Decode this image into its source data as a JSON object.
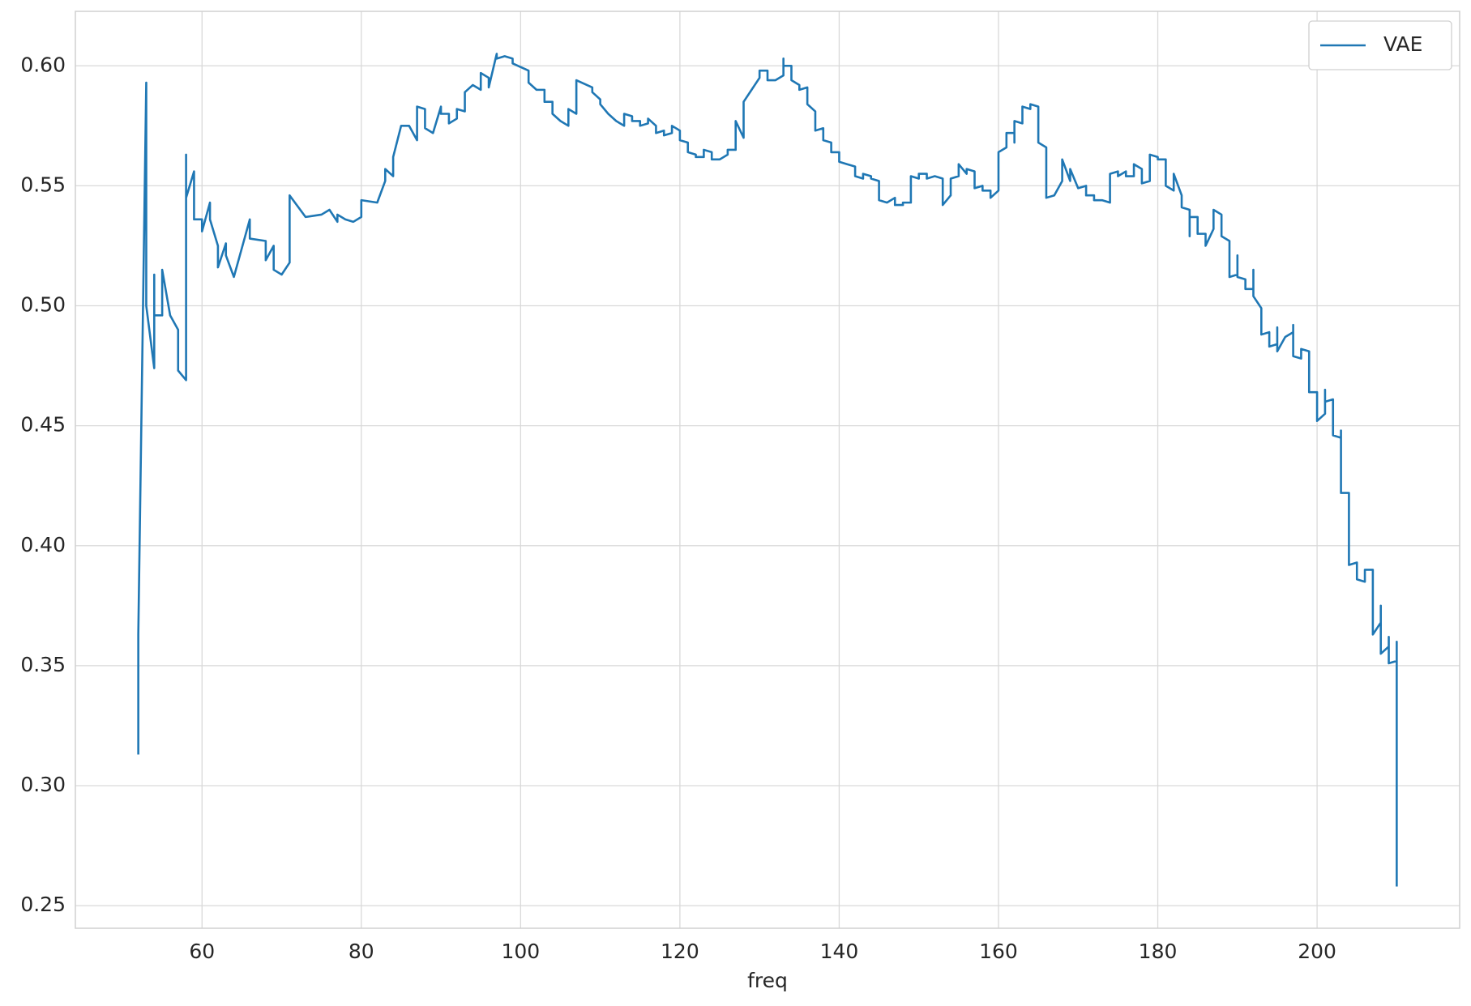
{
  "chart_data": {
    "type": "line",
    "xlabel": "freq",
    "x": [
      52,
      52,
      53,
      53,
      54,
      54,
      54,
      55,
      55,
      56,
      57,
      57,
      58,
      58,
      58,
      59,
      59,
      60,
      60,
      61,
      61,
      62,
      62,
      63,
      63,
      64,
      66,
      66,
      68,
      68,
      69,
      69,
      70,
      71,
      71,
      73,
      75,
      76,
      77,
      77,
      78,
      79,
      80,
      80,
      82,
      83,
      83,
      84,
      84,
      85,
      86,
      87,
      87,
      88,
      88,
      89,
      90,
      90,
      91,
      91,
      92,
      92,
      93,
      93,
      94,
      95,
      95,
      96,
      96,
      97,
      97,
      98,
      99,
      99,
      101,
      101,
      102,
      103,
      103,
      104,
      104,
      105,
      106,
      106,
      107,
      107,
      109,
      109,
      110,
      110,
      111,
      112,
      113,
      113,
      114,
      114,
      115,
      115,
      116,
      116,
      117,
      117,
      118,
      118,
      119,
      119,
      120,
      120,
      121,
      121,
      122,
      122,
      123,
      123,
      124,
      124,
      125,
      126,
      126,
      127,
      127,
      128,
      128,
      129,
      130,
      130,
      131,
      131,
      132,
      133,
      133,
      133,
      134,
      134,
      135,
      135,
      136,
      136,
      137,
      137,
      138,
      138,
      139,
      139,
      140,
      140,
      141,
      142,
      142,
      143,
      143,
      144,
      144,
      145,
      145,
      146,
      147,
      147,
      148,
      148,
      149,
      149,
      150,
      150,
      151,
      151,
      152,
      153,
      153,
      154,
      154,
      155,
      155,
      156,
      156,
      157,
      157,
      158,
      158,
      159,
      159,
      160,
      160,
      161,
      161,
      162,
      162,
      162,
      163,
      163,
      164,
      164,
      165,
      165,
      166,
      166,
      167,
      168,
      168,
      169,
      169,
      170,
      171,
      171,
      172,
      172,
      173,
      174,
      174,
      175,
      175,
      176,
      176,
      177,
      177,
      178,
      178,
      179,
      179,
      180,
      180,
      181,
      181,
      182,
      182,
      183,
      183,
      184,
      184,
      184,
      185,
      185,
      186,
      186,
      187,
      187,
      188,
      188,
      189,
      189,
      190,
      190,
      190,
      191,
      191,
      192,
      192,
      192,
      193,
      193,
      194,
      194,
      195,
      195,
      195,
      196,
      197,
      197,
      197,
      198,
      198,
      199,
      199,
      200,
      200,
      201,
      201,
      201,
      202,
      202,
      203,
      203,
      203,
      204,
      204,
      205,
      205,
      206,
      206,
      207,
      207,
      208,
      208,
      208,
      209,
      209,
      209,
      210,
      210,
      210
    ],
    "series": [
      {
        "name": "VAE",
        "color": "#1f77b4",
        "values": [
          0.313,
          0.363,
          0.593,
          0.5,
          0.474,
          0.513,
          0.496,
          0.496,
          0.515,
          0.496,
          0.49,
          0.473,
          0.469,
          0.563,
          0.545,
          0.556,
          0.536,
          0.536,
          0.531,
          0.543,
          0.536,
          0.525,
          0.516,
          0.526,
          0.521,
          0.512,
          0.536,
          0.528,
          0.527,
          0.519,
          0.525,
          0.515,
          0.513,
          0.518,
          0.546,
          0.537,
          0.538,
          0.54,
          0.535,
          0.538,
          0.536,
          0.535,
          0.537,
          0.544,
          0.543,
          0.552,
          0.557,
          0.554,
          0.562,
          0.575,
          0.575,
          0.569,
          0.583,
          0.582,
          0.574,
          0.572,
          0.583,
          0.58,
          0.58,
          0.576,
          0.578,
          0.582,
          0.581,
          0.589,
          0.592,
          0.59,
          0.597,
          0.595,
          0.591,
          0.605,
          0.603,
          0.604,
          0.603,
          0.601,
          0.598,
          0.593,
          0.59,
          0.59,
          0.585,
          0.585,
          0.58,
          0.577,
          0.575,
          0.582,
          0.58,
          0.594,
          0.591,
          0.589,
          0.586,
          0.584,
          0.58,
          0.577,
          0.575,
          0.58,
          0.579,
          0.577,
          0.577,
          0.575,
          0.576,
          0.578,
          0.575,
          0.572,
          0.573,
          0.571,
          0.572,
          0.575,
          0.573,
          0.569,
          0.568,
          0.564,
          0.563,
          0.562,
          0.562,
          0.565,
          0.564,
          0.561,
          0.561,
          0.563,
          0.565,
          0.565,
          0.577,
          0.57,
          0.585,
          0.59,
          0.595,
          0.598,
          0.598,
          0.594,
          0.594,
          0.596,
          0.603,
          0.6,
          0.6,
          0.594,
          0.592,
          0.59,
          0.591,
          0.584,
          0.581,
          0.573,
          0.574,
          0.569,
          0.568,
          0.564,
          0.564,
          0.56,
          0.559,
          0.558,
          0.554,
          0.553,
          0.555,
          0.554,
          0.553,
          0.552,
          0.544,
          0.543,
          0.545,
          0.542,
          0.542,
          0.543,
          0.543,
          0.554,
          0.553,
          0.555,
          0.555,
          0.553,
          0.554,
          0.553,
          0.542,
          0.546,
          0.553,
          0.554,
          0.559,
          0.555,
          0.557,
          0.556,
          0.549,
          0.55,
          0.548,
          0.548,
          0.545,
          0.548,
          0.564,
          0.566,
          0.572,
          0.572,
          0.568,
          0.577,
          0.576,
          0.583,
          0.582,
          0.584,
          0.583,
          0.568,
          0.566,
          0.545,
          0.546,
          0.552,
          0.561,
          0.552,
          0.557,
          0.549,
          0.55,
          0.546,
          0.546,
          0.544,
          0.544,
          0.543,
          0.555,
          0.556,
          0.554,
          0.556,
          0.554,
          0.554,
          0.559,
          0.557,
          0.551,
          0.552,
          0.563,
          0.562,
          0.561,
          0.561,
          0.55,
          0.548,
          0.555,
          0.546,
          0.541,
          0.54,
          0.529,
          0.537,
          0.537,
          0.53,
          0.53,
          0.525,
          0.532,
          0.54,
          0.538,
          0.529,
          0.527,
          0.512,
          0.513,
          0.521,
          0.512,
          0.511,
          0.507,
          0.507,
          0.515,
          0.504,
          0.499,
          0.488,
          0.489,
          0.483,
          0.484,
          0.491,
          0.481,
          0.487,
          0.489,
          0.492,
          0.479,
          0.478,
          0.482,
          0.481,
          0.464,
          0.464,
          0.452,
          0.455,
          0.465,
          0.46,
          0.461,
          0.446,
          0.445,
          0.448,
          0.422,
          0.422,
          0.392,
          0.393,
          0.386,
          0.385,
          0.39,
          0.39,
          0.363,
          0.368,
          0.375,
          0.355,
          0.358,
          0.362,
          0.351,
          0.352,
          0.36,
          0.258
        ]
      }
    ],
    "xlim": [
      44.1,
      217.9
    ],
    "xticks": [
      60,
      80,
      100,
      120,
      140,
      160,
      180,
      200
    ],
    "ylim": [
      0.2406,
      0.6227
    ],
    "yticks": [
      {
        "value": 0.25,
        "label": "0.25"
      },
      {
        "value": 0.3,
        "label": "0.30"
      },
      {
        "value": 0.35,
        "label": "0.35"
      },
      {
        "value": 0.4,
        "label": "0.40"
      },
      {
        "value": 0.45,
        "label": "0.45"
      },
      {
        "value": 0.5,
        "label": "0.50"
      },
      {
        "value": 0.55,
        "label": "0.55"
      },
      {
        "value": 0.6,
        "label": "0.60"
      }
    ],
    "grid": true,
    "legend": "upper right"
  }
}
